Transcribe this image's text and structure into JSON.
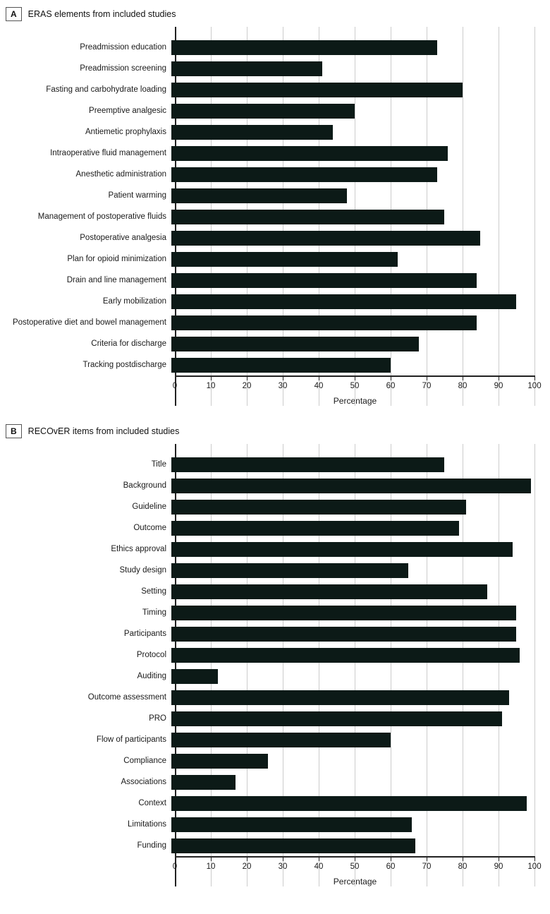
{
  "figure": {
    "panels": [
      {
        "letter": "A",
        "title": "ERAS elements from included studies"
      },
      {
        "letter": "B",
        "title": "RECOvER items from included studies"
      }
    ]
  },
  "chart_data": [
    {
      "type": "bar",
      "orientation": "horizontal",
      "title": "ERAS elements from included studies",
      "categories": [
        "Preadmission education",
        "Preadmission screening",
        "Fasting and carbohydrate loading",
        "Preemptive analgesic",
        "Antiemetic prophylaxis",
        "Intraoperative fluid management",
        "Anesthetic administration",
        "Patient warming",
        "Management of postoperative fluids",
        "Postoperative analgesia",
        "Plan for opioid minimization",
        "Drain and line management",
        "Early mobilization",
        "Postoperative diet and bowel management",
        "Criteria for discharge",
        "Tracking postdischarge"
      ],
      "values": [
        74,
        42,
        81,
        51,
        45,
        77,
        74,
        49,
        76,
        86,
        63,
        85,
        96,
        85,
        69,
        61
      ],
      "xlabel": "Percentage",
      "xlim": [
        0,
        100
      ],
      "ticks": [
        "0",
        "10",
        "20",
        "30",
        "40",
        "50",
        "60",
        "70",
        "80",
        "90",
        "100"
      ],
      "grid": "vertical gridlines every 10",
      "legend": "none"
    },
    {
      "type": "bar",
      "orientation": "horizontal",
      "title": "RECOvER items from included studies",
      "categories": [
        "Title",
        "Background",
        "Guideline",
        "Outcome",
        "Ethics approval",
        "Study design",
        "Setting",
        "Timing",
        "Participants",
        "Protocol",
        "Auditing",
        "Outcome assessment",
        "PRO",
        "Flow of participants",
        "Compliance",
        "Associations",
        "Context",
        "Limitations",
        "Funding"
      ],
      "values": [
        76,
        100,
        82,
        80,
        95,
        66,
        88,
        96,
        96,
        97,
        13,
        94,
        92,
        61,
        27,
        18,
        99,
        67,
        68
      ],
      "xlabel": "Percentage",
      "xlim": [
        0,
        100
      ],
      "ticks": [
        "0",
        "10",
        "20",
        "30",
        "40",
        "50",
        "60",
        "70",
        "80",
        "90",
        "100"
      ],
      "grid": "vertical gridlines every 10",
      "legend": "none"
    }
  ],
  "colors": {
    "bar_fill": "#0c1a17",
    "gridline": "#cccccc",
    "axis": "#222222",
    "text": "#1a1a1a"
  }
}
